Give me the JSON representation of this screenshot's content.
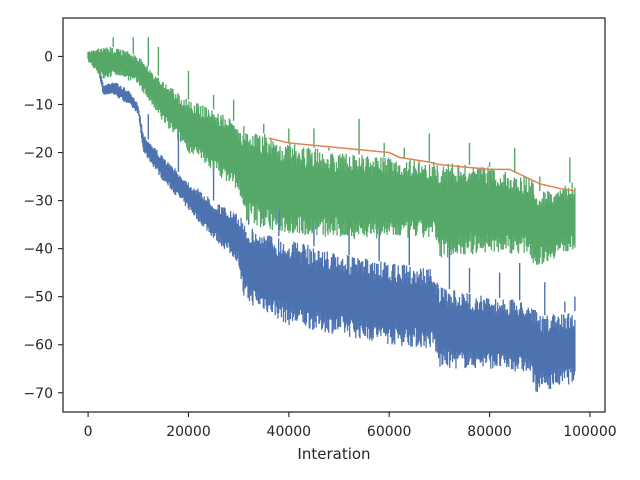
{
  "chart_data": {
    "type": "line",
    "title": "",
    "xlabel": "Interation",
    "ylabel": "",
    "xlim": [
      -5000,
      103000
    ],
    "ylim": [
      -74,
      8
    ],
    "x_ticks": [
      0,
      20000,
      40000,
      60000,
      80000,
      100000
    ],
    "x_tick_labels": [
      "0",
      "20000",
      "40000",
      "60000",
      "80000",
      "100000"
    ],
    "y_ticks": [
      0,
      -10,
      -20,
      -30,
      -40,
      -50,
      -60,
      -70
    ],
    "y_tick_labels": [
      "0",
      "−10",
      "−20",
      "−30",
      "−40",
      "−50",
      "−60",
      "−70"
    ],
    "grid": false,
    "legend": "none",
    "series": [
      {
        "color": "#4c72b0",
        "style": "noisy-band",
        "upper": [
          [
            0,
            1
          ],
          [
            2000,
            1
          ],
          [
            3000,
            -6
          ],
          [
            5000,
            -5
          ],
          [
            8000,
            -7
          ],
          [
            10000,
            -10
          ],
          [
            11000,
            -16
          ],
          [
            15000,
            -21
          ],
          [
            20000,
            -26
          ],
          [
            25000,
            -30
          ],
          [
            30000,
            -33
          ],
          [
            31000,
            -34
          ],
          [
            33000,
            -36
          ],
          [
            40000,
            -38
          ],
          [
            50000,
            -41
          ],
          [
            60000,
            -43
          ],
          [
            69000,
            -44
          ],
          [
            70000,
            -48
          ],
          [
            80000,
            -50
          ],
          [
            88000,
            -51
          ],
          [
            90000,
            -54
          ],
          [
            97000,
            -53
          ]
        ],
        "lower": [
          [
            0,
            -1
          ],
          [
            2000,
            -3
          ],
          [
            3000,
            -8
          ],
          [
            5000,
            -8
          ],
          [
            8000,
            -10
          ],
          [
            10000,
            -12
          ],
          [
            11000,
            -20
          ],
          [
            15000,
            -26
          ],
          [
            20000,
            -32
          ],
          [
            25000,
            -38
          ],
          [
            30000,
            -43
          ],
          [
            31000,
            -51
          ],
          [
            35000,
            -53
          ],
          [
            40000,
            -56
          ],
          [
            50000,
            -58
          ],
          [
            60000,
            -60
          ],
          [
            69000,
            -61
          ],
          [
            70000,
            -65
          ],
          [
            80000,
            -65
          ],
          [
            88000,
            -66
          ],
          [
            89000,
            -70
          ],
          [
            97000,
            -68
          ]
        ],
        "spikes": [
          [
            12000,
            -12
          ],
          [
            18000,
            -15
          ],
          [
            25000,
            -18
          ],
          [
            32000,
            -23
          ],
          [
            38000,
            -28
          ],
          [
            45000,
            -32
          ],
          [
            52000,
            -34
          ],
          [
            58000,
            -35
          ],
          [
            64000,
            -35
          ],
          [
            72000,
            -38
          ],
          [
            76000,
            -44
          ],
          [
            82000,
            -45
          ],
          [
            86000,
            -43
          ],
          [
            91000,
            -47
          ],
          [
            95000,
            -51
          ],
          [
            97000,
            -50
          ]
        ]
      },
      {
        "color": "#55a868",
        "style": "noisy-band",
        "upper": [
          [
            0,
            1
          ],
          [
            3000,
            2
          ],
          [
            6000,
            2
          ],
          [
            10000,
            0
          ],
          [
            15000,
            -5
          ],
          [
            20000,
            -9
          ],
          [
            25000,
            -11
          ],
          [
            30000,
            -14
          ],
          [
            35000,
            -16
          ],
          [
            40000,
            -18
          ],
          [
            50000,
            -20
          ],
          [
            60000,
            -21
          ],
          [
            70000,
            -22
          ],
          [
            80000,
            -23
          ],
          [
            88000,
            -25
          ],
          [
            90000,
            -28
          ],
          [
            97000,
            -26
          ]
        ],
        "lower": [
          [
            0,
            -1
          ],
          [
            3000,
            -5
          ],
          [
            6000,
            -4
          ],
          [
            10000,
            -6
          ],
          [
            15000,
            -14
          ],
          [
            20000,
            -20
          ],
          [
            25000,
            -24
          ],
          [
            30000,
            -28
          ],
          [
            31000,
            -34
          ],
          [
            35000,
            -36
          ],
          [
            40000,
            -37
          ],
          [
            50000,
            -38
          ],
          [
            60000,
            -38
          ],
          [
            69000,
            -38
          ],
          [
            70000,
            -42
          ],
          [
            80000,
            -41
          ],
          [
            88000,
            -41
          ],
          [
            89000,
            -44
          ],
          [
            97000,
            -40
          ]
        ],
        "spikes": [
          [
            5000,
            4
          ],
          [
            9000,
            4
          ],
          [
            12000,
            4
          ],
          [
            14000,
            2
          ],
          [
            20000,
            -3
          ],
          [
            25000,
            -8
          ],
          [
            29000,
            -9
          ],
          [
            35000,
            -14
          ],
          [
            40000,
            -15
          ],
          [
            45000,
            -15
          ],
          [
            48000,
            -19
          ],
          [
            54000,
            -13
          ],
          [
            59000,
            -18
          ],
          [
            63000,
            -19
          ],
          [
            68000,
            -16
          ],
          [
            76000,
            -18
          ],
          [
            80000,
            -22
          ],
          [
            85000,
            -19
          ],
          [
            90000,
            -25
          ],
          [
            96000,
            -21
          ]
        ]
      },
      {
        "color": "#dd8452",
        "style": "line",
        "points": [
          [
            36000,
            -17
          ],
          [
            40000,
            -18
          ],
          [
            45000,
            -18.5
          ],
          [
            50000,
            -19
          ],
          [
            55000,
            -19.5
          ],
          [
            60000,
            -20
          ],
          [
            62000,
            -21
          ],
          [
            65000,
            -21.5
          ],
          [
            68000,
            -22
          ],
          [
            70000,
            -22.5
          ],
          [
            75000,
            -23
          ],
          [
            80000,
            -23.5
          ],
          [
            84000,
            -23.5
          ],
          [
            86000,
            -24.5
          ],
          [
            88000,
            -25.5
          ],
          [
            90000,
            -26.5
          ],
          [
            94000,
            -27.5
          ],
          [
            97000,
            -28
          ]
        ]
      }
    ]
  }
}
